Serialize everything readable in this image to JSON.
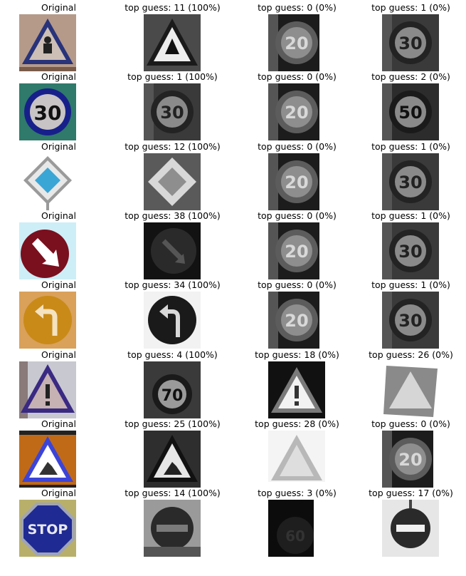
{
  "chart_data": {
    "type": "image-grid",
    "rows": [
      {
        "original": {
          "label": "Original",
          "sign": "children-crossing"
        },
        "guesses": [
          {
            "label": "top guess: 11 (100%)",
            "class_id": 11,
            "prob": 100,
            "sign": "triangle-ahead"
          },
          {
            "label": "top guess: 0 (0%)",
            "class_id": 0,
            "prob": 0,
            "sign": "speed-20"
          },
          {
            "label": "top guess: 1 (0%)",
            "class_id": 1,
            "prob": 0,
            "sign": "speed-30-dark"
          }
        ]
      },
      {
        "original": {
          "label": "Original",
          "sign": "speed-30"
        },
        "guesses": [
          {
            "label": "top guess: 1 (100%)",
            "class_id": 1,
            "prob": 100,
            "sign": "speed-30-dark"
          },
          {
            "label": "top guess: 0 (0%)",
            "class_id": 0,
            "prob": 0,
            "sign": "speed-20"
          },
          {
            "label": "top guess: 2 (0%)",
            "class_id": 2,
            "prob": 0,
            "sign": "speed-50"
          }
        ]
      },
      {
        "original": {
          "label": "Original",
          "sign": "priority-road"
        },
        "guesses": [
          {
            "label": "top guess: 12 (100%)",
            "class_id": 12,
            "prob": 100,
            "sign": "priority-gray"
          },
          {
            "label": "top guess: 0 (0%)",
            "class_id": 0,
            "prob": 0,
            "sign": "speed-20"
          },
          {
            "label": "top guess: 1 (0%)",
            "class_id": 1,
            "prob": 0,
            "sign": "speed-30-dark"
          }
        ]
      },
      {
        "original": {
          "label": "Original",
          "sign": "keep-right"
        },
        "guesses": [
          {
            "label": "top guess: 38 (100%)",
            "class_id": 38,
            "prob": 100,
            "sign": "keep-right-dark"
          },
          {
            "label": "top guess: 0 (0%)",
            "class_id": 0,
            "prob": 0,
            "sign": "speed-20"
          },
          {
            "label": "top guess: 1 (0%)",
            "class_id": 1,
            "prob": 0,
            "sign": "speed-30-dark"
          }
        ]
      },
      {
        "original": {
          "label": "Original",
          "sign": "turn-left-ahead"
        },
        "guesses": [
          {
            "label": "top guess: 34 (100%)",
            "class_id": 34,
            "prob": 100,
            "sign": "turn-left-gray"
          },
          {
            "label": "top guess: 0 (0%)",
            "class_id": 0,
            "prob": 0,
            "sign": "speed-20"
          },
          {
            "label": "top guess: 1 (0%)",
            "class_id": 1,
            "prob": 0,
            "sign": "speed-30-dark"
          }
        ]
      },
      {
        "original": {
          "label": "Original",
          "sign": "general-caution"
        },
        "guesses": [
          {
            "label": "top guess: 4 (100%)",
            "class_id": 4,
            "prob": 100,
            "sign": "speed-70"
          },
          {
            "label": "top guess: 18 (0%)",
            "class_id": 18,
            "prob": 0,
            "sign": "caution-gray"
          },
          {
            "label": "top guess: 26 (0%)",
            "class_id": 26,
            "prob": 0,
            "sign": "triangle-faded"
          }
        ]
      },
      {
        "original": {
          "label": "Original",
          "sign": "road-work"
        },
        "guesses": [
          {
            "label": "top guess: 25 (100%)",
            "class_id": 25,
            "prob": 100,
            "sign": "roadwork-gray"
          },
          {
            "label": "top guess: 28 (0%)",
            "class_id": 28,
            "prob": 0,
            "sign": "triangle-bright"
          },
          {
            "label": "top guess: 0 (0%)",
            "class_id": 0,
            "prob": 0,
            "sign": "speed-20"
          }
        ]
      },
      {
        "original": {
          "label": "Original",
          "sign": "stop"
        },
        "guesses": [
          {
            "label": "top guess: 14 (100%)",
            "class_id": 14,
            "prob": 100,
            "sign": "noentry-gray"
          },
          {
            "label": "top guess: 3 (0%)",
            "class_id": 3,
            "prob": 0,
            "sign": "speed-60-dark"
          },
          {
            "label": "top guess: 17 (0%)",
            "class_id": 17,
            "prob": 0,
            "sign": "noentry-light"
          }
        ]
      }
    ]
  }
}
